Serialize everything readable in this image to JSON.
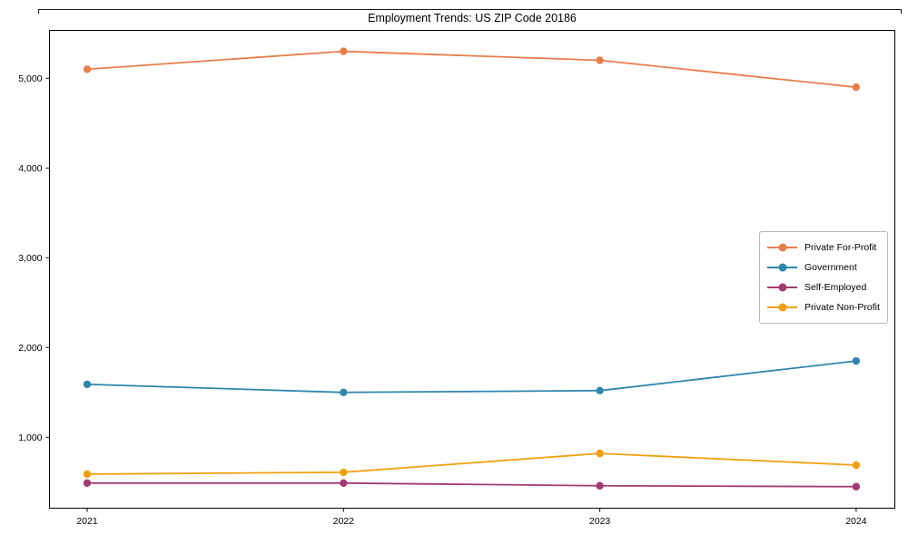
{
  "chart_data": {
    "type": "line",
    "title": "Employment Trends: US ZIP Code 20186",
    "xlabel": "",
    "ylabel": "",
    "x": [
      2021,
      2022,
      2023,
      2024
    ],
    "x_tick_labels": [
      "2021",
      "2022",
      "2023",
      "2024"
    ],
    "y_ticks": [
      1000,
      2000,
      3000,
      4000,
      5000
    ],
    "y_tick_labels": [
      "1,000",
      "2,000",
      "3,000",
      "4,000",
      "5,000"
    ],
    "ylim": [
      200,
      5550
    ],
    "grid": false,
    "legend_position": "center-right",
    "series": [
      {
        "name": "Private For-Profit",
        "color": "#E87D4A",
        "values": [
          5100,
          5300,
          5200,
          4900
        ]
      },
      {
        "name": "Government",
        "color": "#2E86AB",
        "values": [
          1590,
          1500,
          1520,
          1850
        ]
      },
      {
        "name": "Self-Employed",
        "color": "#A23B72",
        "values": [
          490,
          490,
          460,
          450
        ]
      },
      {
        "name": "Private Non-Profit",
        "color": "#F0A00F",
        "values": [
          590,
          610,
          820,
          690
        ]
      }
    ]
  }
}
